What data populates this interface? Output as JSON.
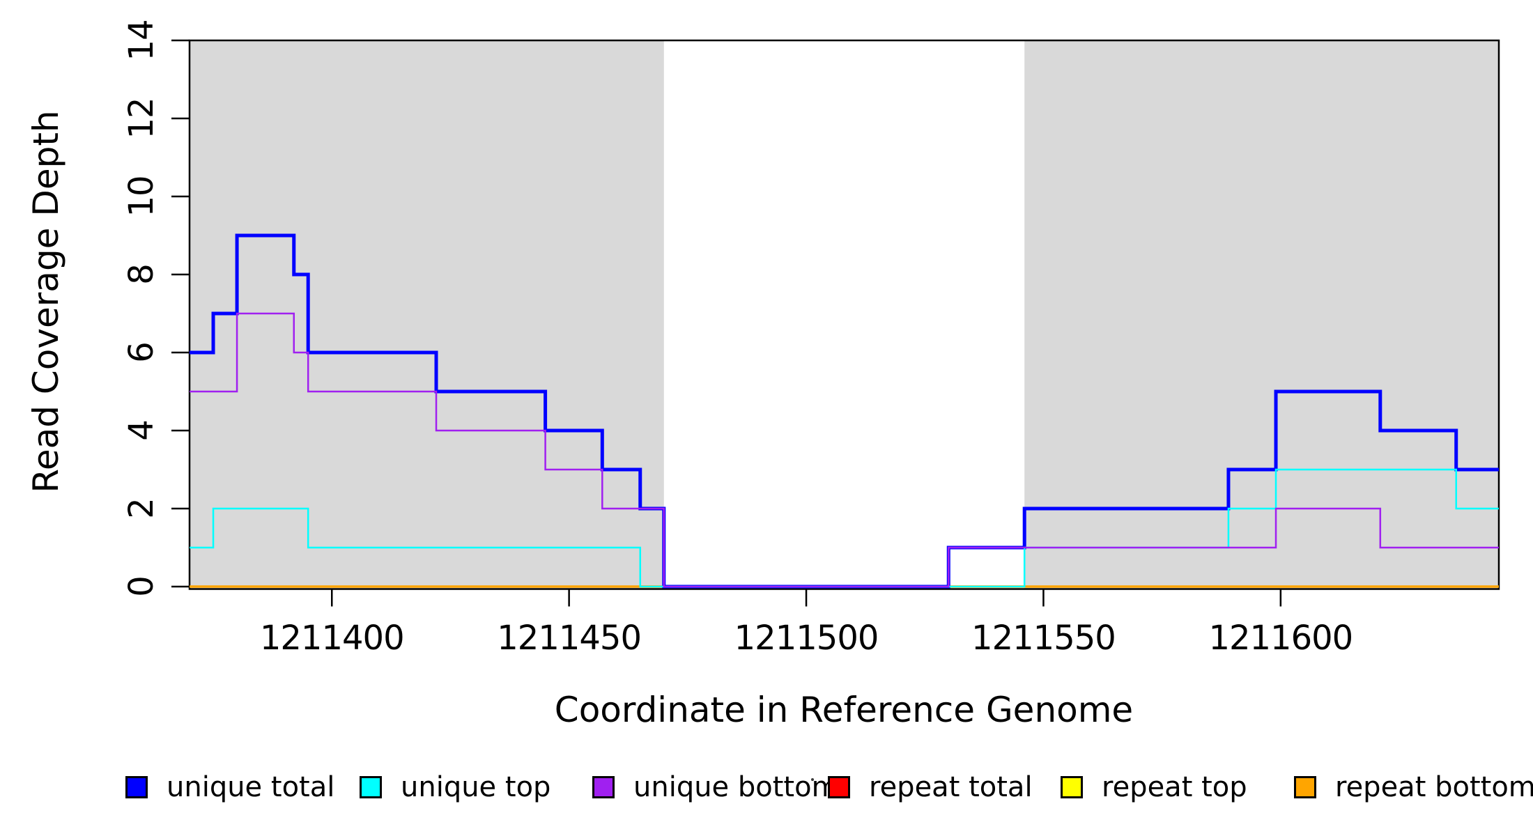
{
  "figure": {
    "background": "#FFFFFF",
    "plot_border_color": "#000000"
  },
  "chart_data": {
    "type": "line",
    "subtype": "step-coverage",
    "title": "",
    "xlabel": "Coordinate in Reference Genome",
    "ylabel": "Read Coverage Depth",
    "xlim": [
      1211370,
      1211646
    ],
    "ylim": [
      0,
      14
    ],
    "grid": false,
    "xticks": {
      "values": [
        1211400,
        1211450,
        1211500,
        1211550,
        1211600
      ],
      "labels": [
        "1211400",
        "1211450",
        "1211500",
        "1211550",
        "1211600"
      ]
    },
    "yticks": {
      "values": [
        0,
        2,
        4,
        6,
        8,
        10,
        12,
        14
      ],
      "labels": [
        "0",
        "2",
        "4",
        "6",
        "8",
        "10",
        "12",
        "14"
      ]
    },
    "shaded_regions": [
      {
        "x0": 1211370,
        "x1": 1211470,
        "color": "#D9D9D9"
      },
      {
        "x0": 1211546,
        "x1": 1211646,
        "color": "#D9D9D9"
      }
    ],
    "series": [
      {
        "name": "repeat total",
        "color": "#FF0000",
        "line_width": 2.5,
        "steps": [
          [
            1211370,
            0
          ]
        ]
      },
      {
        "name": "repeat top",
        "color": "#FFFF00",
        "line_width": 2.5,
        "steps": [
          [
            1211370,
            0
          ]
        ]
      },
      {
        "name": "repeat bottom",
        "color": "#FFA500",
        "line_width": 3.5,
        "steps": [
          [
            1211370,
            0
          ]
        ]
      },
      {
        "name": "unique total",
        "color": "#0000FF",
        "line_width": 5,
        "steps": [
          [
            1211370,
            6
          ],
          [
            1211375,
            7
          ],
          [
            1211380,
            9
          ],
          [
            1211392,
            8
          ],
          [
            1211395,
            6
          ],
          [
            1211422,
            5
          ],
          [
            1211445,
            4
          ],
          [
            1211457,
            3
          ],
          [
            1211465,
            2
          ],
          [
            1211470,
            0
          ],
          [
            1211530,
            1
          ],
          [
            1211546,
            2
          ],
          [
            1211589,
            3
          ],
          [
            1211599,
            5
          ],
          [
            1211621,
            4
          ],
          [
            1211637,
            3
          ]
        ]
      },
      {
        "name": "unique top",
        "color": "#00FFFF",
        "line_width": 2.5,
        "steps": [
          [
            1211370,
            1
          ],
          [
            1211375,
            2
          ],
          [
            1211395,
            1
          ],
          [
            1211465,
            0
          ],
          [
            1211546,
            1
          ],
          [
            1211589,
            2
          ],
          [
            1211599,
            3
          ],
          [
            1211637,
            2
          ]
        ]
      },
      {
        "name": "unique bottom",
        "color": "#A020F0",
        "line_width": 2.5,
        "steps": [
          [
            1211370,
            5
          ],
          [
            1211380,
            7
          ],
          [
            1211392,
            6
          ],
          [
            1211395,
            5
          ],
          [
            1211422,
            4
          ],
          [
            1211445,
            3
          ],
          [
            1211457,
            2
          ],
          [
            1211470,
            0
          ],
          [
            1211530,
            1
          ],
          [
            1211599,
            2
          ],
          [
            1211621,
            1
          ]
        ]
      }
    ],
    "legend": {
      "position": "bottom",
      "items": [
        {
          "label": "unique total",
          "color": "#0000FF"
        },
        {
          "label": "unique top",
          "color": "#00FFFF"
        },
        {
          "label": "unique bottom",
          "color": "#A020F0"
        },
        {
          "label": "repeat total",
          "color": "#FF0000"
        },
        {
          "label": "repeat top",
          "color": "#FFFF00"
        },
        {
          "label": "repeat bottom",
          "color": "#FFA500"
        }
      ]
    }
  }
}
